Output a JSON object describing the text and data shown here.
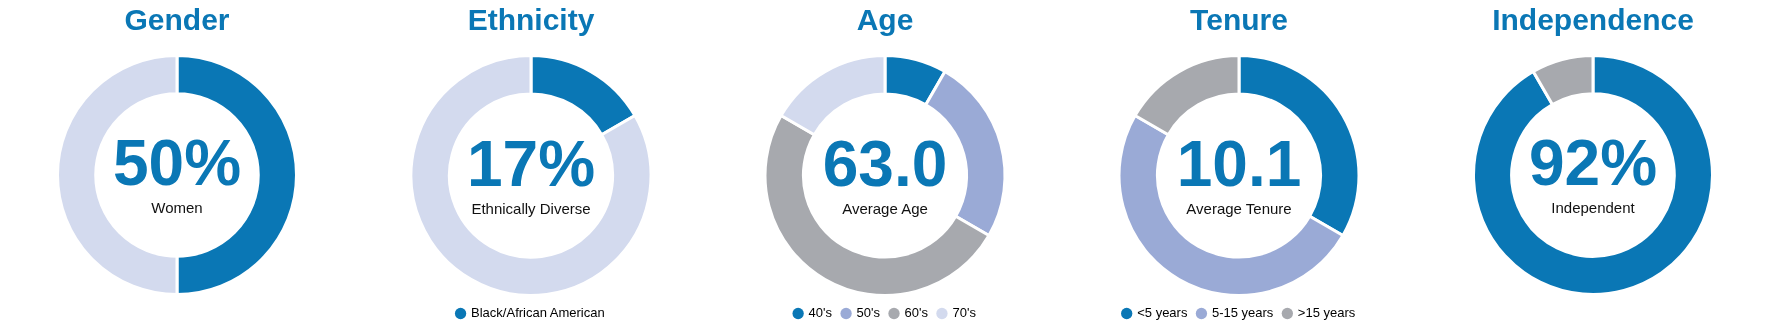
{
  "chart_data": [
    {
      "type": "donut",
      "title": "Gender",
      "categories": [
        null,
        null
      ],
      "values": [
        50,
        50
      ],
      "colors": [
        "#0a77b5",
        "#d3daee"
      ],
      "annotations": [
        "50%",
        "Women"
      ],
      "legend": false
    },
    {
      "type": "donut",
      "title": "Ethnicity",
      "categories": [
        "Black/African American",
        null
      ],
      "values": [
        16.67,
        83.33
      ],
      "colors": [
        "#0a77b5",
        "#d3daee"
      ],
      "annotations": [
        "17%",
        "Ethnically Diverse"
      ],
      "legend": "bottom"
    },
    {
      "type": "donut",
      "title": "Age",
      "categories": [
        "40's",
        "50's",
        "60's",
        "70's"
      ],
      "values": [
        8.33,
        25,
        50,
        16.67
      ],
      "colors": [
        "#0a77b5",
        "#9aaad6",
        "#a7a9ae",
        "#d3daee"
      ],
      "annotations": [
        "63.0",
        "Average Age"
      ],
      "legend": "bottom"
    },
    {
      "type": "donut",
      "title": "Tenure",
      "categories": [
        "<5 years",
        "5-15 years",
        ">15 years"
      ],
      "values": [
        33.33,
        50,
        16.67
      ],
      "colors": [
        "#0a77b5",
        "#9aaad6",
        "#a7a9ae"
      ],
      "annotations": [
        "10.1",
        "Average Tenure"
      ],
      "legend": "bottom"
    },
    {
      "type": "donut",
      "title": "Independence",
      "categories": [
        null,
        null
      ],
      "values": [
        91.67,
        8.33
      ],
      "colors": [
        "#0a77b5",
        "#a7a9ae"
      ],
      "annotations": [
        "92%",
        "Independent"
      ],
      "legend": false
    }
  ]
}
